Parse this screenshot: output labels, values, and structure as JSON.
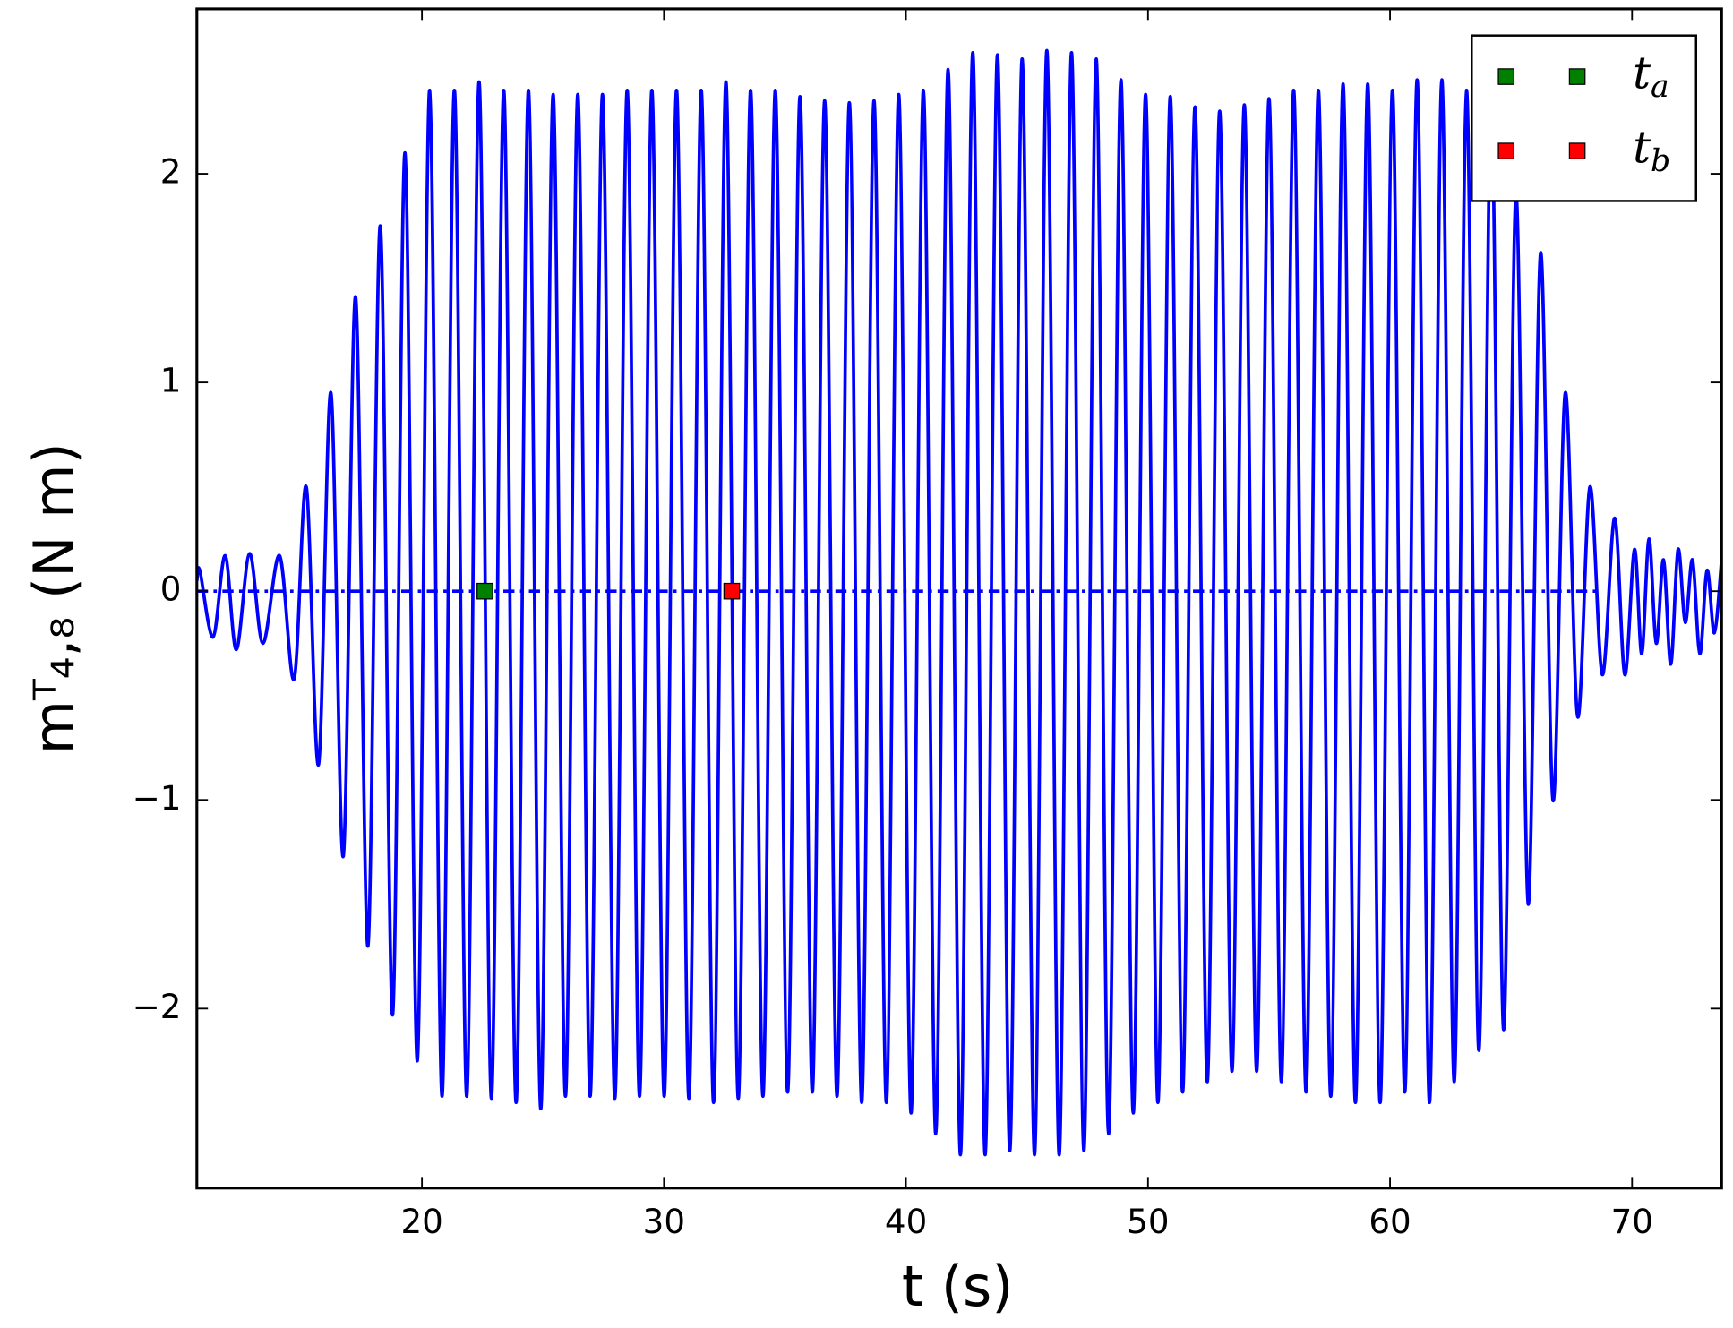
{
  "chart_data": {
    "type": "line",
    "xlabel": "t (s)",
    "ylabel": "mᵀ₄,₈ (N m)",
    "xlim": [
      10.7,
      73.7
    ],
    "ylim": [
      -2.86,
      2.79
    ],
    "xticks": [
      20,
      30,
      40,
      50,
      60,
      70
    ],
    "yticks": [
      {
        "value": -2,
        "label": "−2"
      },
      {
        "value": -1,
        "label": "−1"
      },
      0,
      1,
      2
    ],
    "legend": "upper right",
    "series": [
      {
        "color": "#0000ff",
        "style": "solid",
        "x": [
          10.7,
          10.82,
          11.37,
          11.87,
          12.33,
          12.88,
          13.43,
          14.12,
          14.72,
          15.22,
          15.73,
          16.24,
          16.75,
          17.26,
          17.77,
          18.28,
          18.79,
          19.3,
          19.81,
          20.32,
          20.83,
          21.34,
          21.85,
          22.36,
          22.87,
          23.38,
          23.89,
          24.4,
          24.91,
          25.42,
          25.93,
          26.44,
          26.95,
          27.46,
          27.97,
          28.48,
          28.99,
          29.5,
          30.01,
          30.52,
          31.03,
          31.54,
          32.05,
          32.56,
          33.07,
          33.58,
          34.09,
          34.6,
          35.11,
          35.62,
          36.13,
          36.64,
          37.15,
          37.66,
          38.17,
          38.68,
          39.19,
          39.7,
          40.21,
          40.72,
          41.23,
          41.74,
          42.25,
          42.76,
          43.27,
          43.78,
          44.29,
          44.8,
          45.31,
          45.82,
          46.33,
          46.84,
          47.35,
          47.86,
          48.37,
          48.88,
          49.39,
          49.9,
          50.41,
          50.92,
          51.43,
          51.94,
          52.45,
          52.96,
          53.47,
          53.98,
          54.49,
          55.0,
          55.51,
          56.02,
          56.53,
          57.04,
          57.55,
          58.06,
          58.57,
          59.08,
          59.59,
          60.1,
          60.61,
          61.12,
          61.63,
          62.14,
          62.65,
          63.16,
          63.67,
          64.18,
          64.69,
          65.2,
          65.71,
          66.22,
          66.73,
          67.24,
          67.75,
          68.26,
          68.77,
          69.28,
          69.7,
          70.1,
          70.4,
          70.7,
          71.0,
          71.3,
          71.6,
          71.9,
          72.2,
          72.5,
          72.8,
          73.1,
          73.4,
          73.7
        ],
        "values": [
          0.05,
          0.1,
          -0.22,
          0.17,
          -0.28,
          0.18,
          -0.25,
          0.17,
          -0.42,
          0.5,
          -0.83,
          0.95,
          -1.27,
          1.41,
          -1.7,
          1.75,
          -2.03,
          2.1,
          -2.25,
          2.4,
          -2.42,
          2.4,
          -2.42,
          2.44,
          -2.43,
          2.4,
          -2.45,
          2.4,
          -2.48,
          2.38,
          -2.42,
          2.38,
          -2.42,
          2.38,
          -2.43,
          2.4,
          -2.42,
          2.4,
          -2.42,
          2.4,
          -2.43,
          2.4,
          -2.45,
          2.44,
          -2.43,
          2.4,
          -2.42,
          2.4,
          -2.4,
          2.37,
          -2.4,
          2.35,
          -2.42,
          2.34,
          -2.45,
          2.35,
          -2.45,
          2.38,
          -2.5,
          2.4,
          -2.6,
          2.5,
          -2.7,
          2.58,
          -2.7,
          2.57,
          -2.68,
          2.55,
          -2.7,
          2.59,
          -2.7,
          2.58,
          -2.68,
          2.55,
          -2.6,
          2.45,
          -2.5,
          2.38,
          -2.45,
          2.37,
          -2.4,
          2.32,
          -2.35,
          2.3,
          -2.3,
          2.33,
          -2.3,
          2.36,
          -2.35,
          2.4,
          -2.4,
          2.4,
          -2.42,
          2.43,
          -2.45,
          2.43,
          -2.45,
          2.4,
          -2.4,
          2.45,
          -2.45,
          2.45,
          -2.35,
          2.4,
          -2.2,
          2.35,
          -2.1,
          1.9,
          -1.5,
          1.62,
          -1.0,
          0.95,
          -0.6,
          0.5,
          -0.4,
          0.35,
          -0.4,
          0.2,
          -0.3,
          0.25,
          -0.25,
          0.15,
          -0.35,
          0.2,
          -0.15,
          0.15,
          -0.3,
          0.1,
          -0.2,
          0.15
        ]
      },
      {
        "color": "#0000ff",
        "style": "dashdot",
        "x": [
          10.7,
          68.5
        ],
        "values": [
          0,
          0
        ]
      }
    ],
    "markers": [
      {
        "name": "t_a",
        "color": "#008000",
        "x": [
          22.6
        ],
        "values": [
          0
        ]
      },
      {
        "name": "t_b",
        "color": "#ff0000",
        "x": [
          32.8
        ],
        "values": [
          0
        ]
      }
    ]
  }
}
